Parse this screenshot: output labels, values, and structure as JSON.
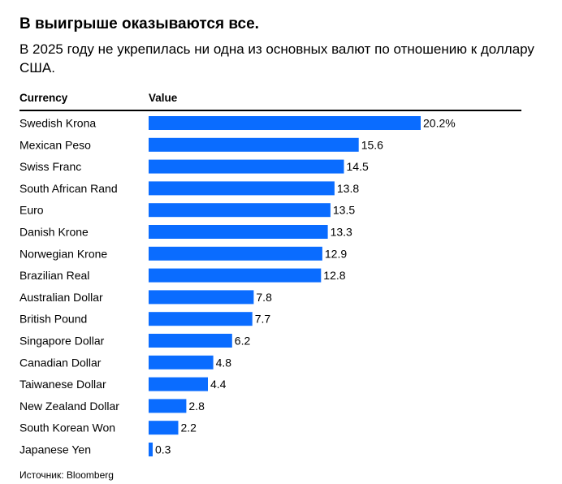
{
  "header": {
    "title": "В выигрыше оказываются все.",
    "subtitle": "В 2025 году не укрепилась ни одна из основных валют по отношению к доллару США."
  },
  "columns": {
    "currency": "Currency",
    "value": "Value"
  },
  "footer": {
    "source": "Источник: Bloomberg"
  },
  "colors": {
    "bar": "#0a6cff",
    "text": "#000000",
    "rule": "#000000"
  },
  "chart_data": {
    "type": "bar",
    "orientation": "horizontal",
    "categories": [
      "Swedish Krona",
      "Mexican Peso",
      "Swiss Franc",
      "South African Rand",
      "Euro",
      "Danish Krone",
      "Norwegian Krone",
      "Brazilian Real",
      "Australian Dollar",
      "British Pound",
      "Singapore Dollar",
      "Canadian Dollar",
      "Taiwanese Dollar",
      "New Zealand Dollar",
      "South Korean Won",
      "Japanese Yen"
    ],
    "values": [
      20.2,
      15.6,
      14.5,
      13.8,
      13.5,
      13.3,
      12.9,
      12.8,
      7.8,
      7.7,
      6.2,
      4.8,
      4.4,
      2.8,
      2.2,
      0.3
    ],
    "value_labels": [
      "20.2%",
      "15.6",
      "14.5",
      "13.8",
      "13.5",
      "13.3",
      "12.9",
      "12.8",
      "7.8",
      "7.7",
      "6.2",
      "4.8",
      "4.4",
      "2.8",
      "2.2",
      "0.3"
    ],
    "xlim": [
      0,
      20.2
    ],
    "grid": false,
    "legend": "none"
  }
}
